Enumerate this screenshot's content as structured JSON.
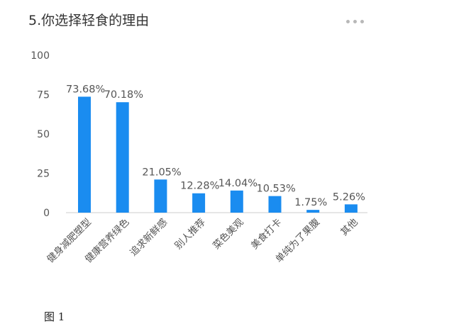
{
  "header": {
    "title": "5.你选择轻食的理由"
  },
  "caption": "图 1",
  "colors": {
    "bar": "#1a8cf0",
    "axis": "#cccccc",
    "text": "#555555"
  },
  "chart_data": {
    "type": "bar",
    "title": "5.你选择轻食的理由",
    "categories": [
      "健身减肥塑型",
      "健康营养绿色",
      "追求新鲜感",
      "别人推荐",
      "菜色美观",
      "美食打卡",
      "单纯为了果腹",
      "其他"
    ],
    "values": [
      73.68,
      70.18,
      21.05,
      12.28,
      14.04,
      10.53,
      1.75,
      5.26
    ],
    "value_labels": [
      "73.68%",
      "70.18%",
      "21.05%",
      "12.28%",
      "14.04%",
      "10.53%",
      "1.75%",
      "5.26%"
    ],
    "ylim": [
      0,
      100
    ],
    "yticks": [
      0,
      25,
      50,
      75,
      100
    ],
    "xlabel": "",
    "ylabel": "",
    "grid": false,
    "legend": "none"
  }
}
